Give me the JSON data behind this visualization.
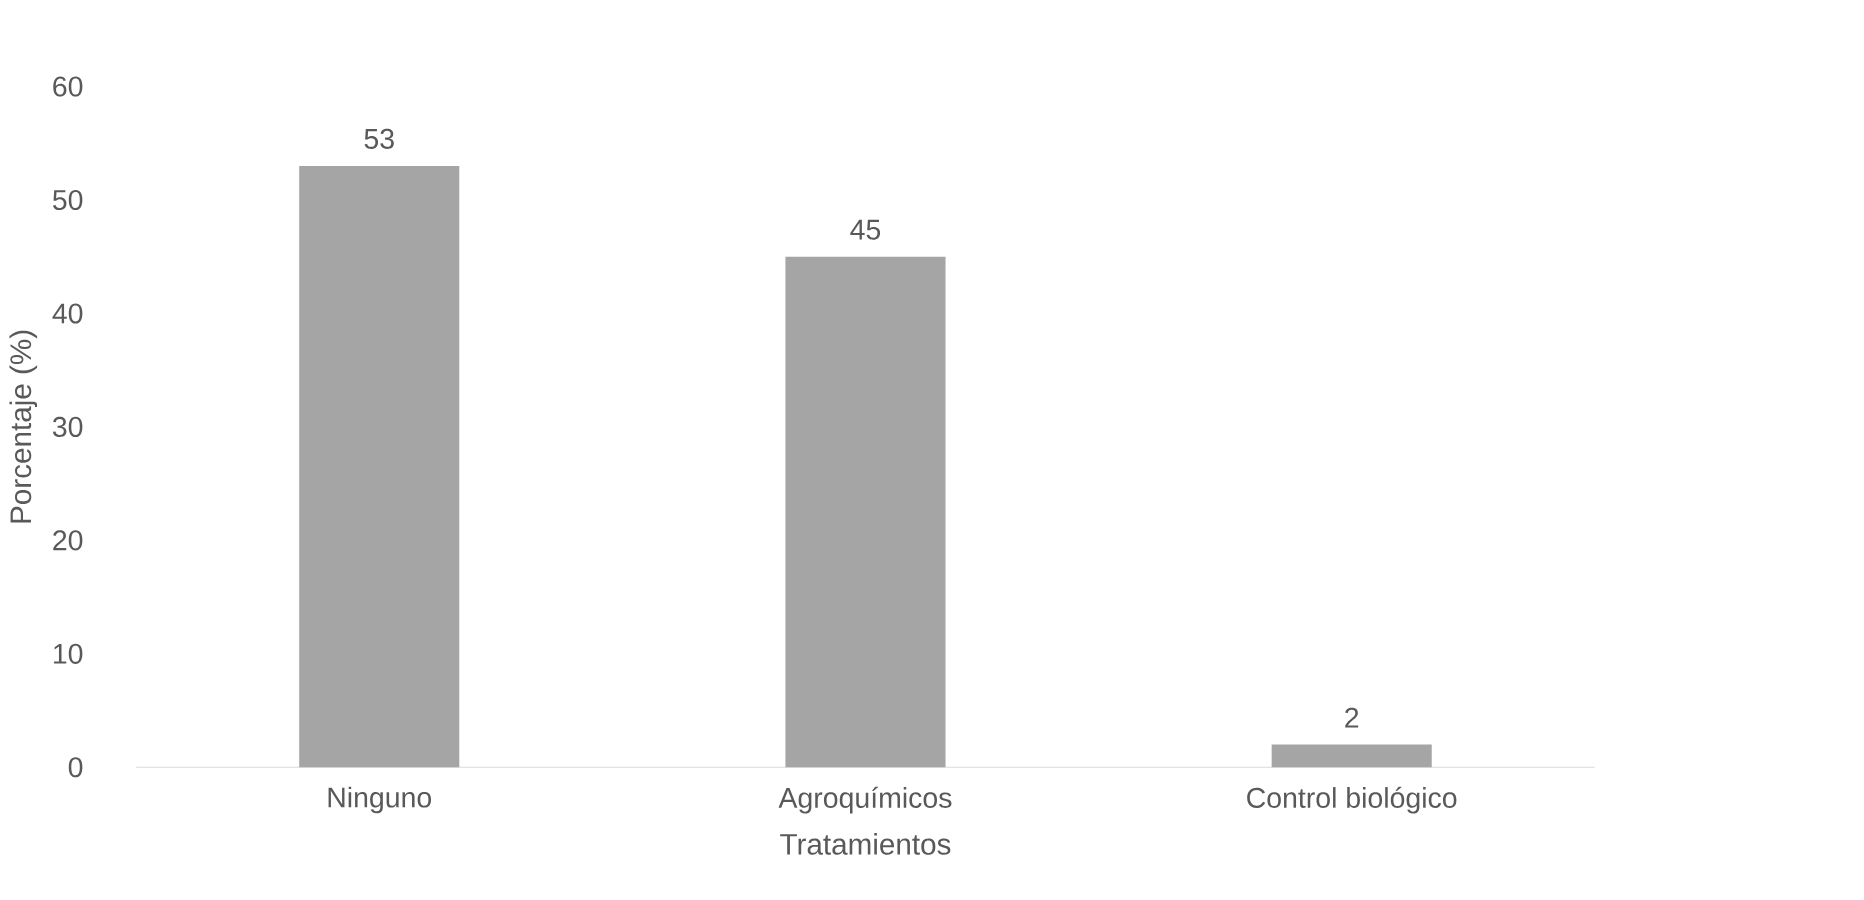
{
  "chart_data": {
    "type": "bar",
    "xlabel": "Tratamientos",
    "ylabel": "Porcentaje (%)",
    "categories": [
      "Ninguno",
      "Agroquímicos",
      "Control biológico"
    ],
    "values": [
      53,
      45,
      2
    ],
    "color": "#a5a5a5",
    "ylim": [
      0,
      60
    ],
    "yticks": [
      0,
      10,
      20,
      30,
      40,
      50,
      60
    ],
    "data_labels": true
  }
}
